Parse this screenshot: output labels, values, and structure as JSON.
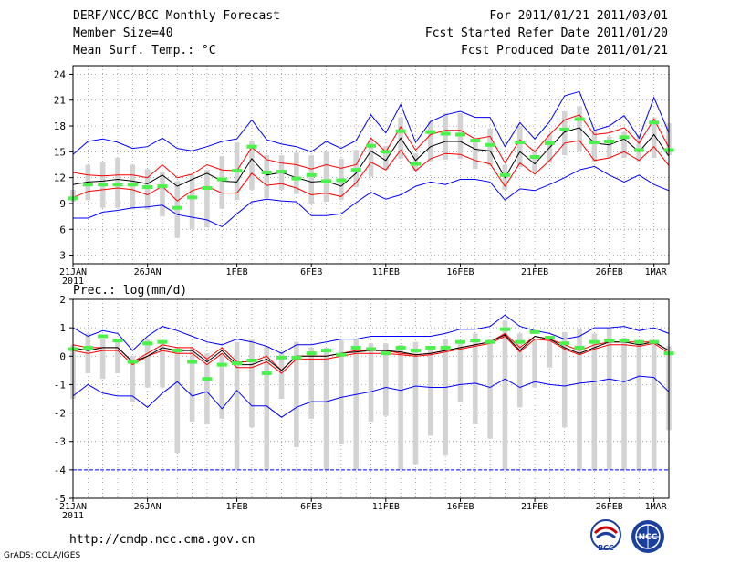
{
  "header": {
    "title": "DERF/NCC/BCC Monthly Forecast",
    "member_size": "Member Size=40",
    "variable": "Mean Surf. Temp.: °C",
    "period": "For 2011/01/21-2011/03/01",
    "refer_date": "Fcst Started Refer Date 2011/01/20",
    "produced_date": "Fcst Produced Date 2011/01/21"
  },
  "footer": {
    "url": "http://cmdp.ncc.cma.gov.cn",
    "credit": "GrADS: COLA/IGES",
    "logo_bcc_text": "BCC",
    "logo_ncc_text": "NCC"
  },
  "colors": {
    "envelope": "#0000ff",
    "spread": "#ff0000",
    "mean": "#000000",
    "median": "#4cf24c",
    "box": "#d3d3d3"
  },
  "chart_data": [
    {
      "type": "box-ensemble",
      "title": "Mean Surf. Temp.: °C",
      "xlabel": "",
      "ylabel": "°C",
      "ylim": [
        2,
        25
      ],
      "yticks": [
        3,
        6,
        9,
        12,
        15,
        18,
        21,
        24
      ],
      "grid": true,
      "x_tick_labels": [
        {
          "day": 0,
          "label": "21JAN"
        },
        {
          "day": 5,
          "label": "26JAN"
        },
        {
          "day": 11,
          "label": "1FEB"
        },
        {
          "day": 16,
          "label": "6FEB"
        },
        {
          "day": 21,
          "label": "11FEB"
        },
        {
          "day": 26,
          "label": "16FEB"
        },
        {
          "day": 31,
          "label": "21FEB"
        },
        {
          "day": 36,
          "label": "26FEB"
        },
        {
          "day": 39,
          "label": "1MAR"
        }
      ],
      "year_label": "2011",
      "series": [
        {
          "name": "max",
          "values": [
            7.3,
            7.3,
            8,
            8.2,
            8.5,
            8.6,
            8.8,
            7.7,
            7.4,
            7.1,
            6.3,
            7.8,
            9.2,
            9.5,
            9.3,
            9.2,
            7.6,
            7.6,
            7.8,
            9.1,
            10.3,
            9.5,
            10,
            11,
            11.5,
            11.2,
            11.8,
            11.8,
            11.5,
            9.4,
            10.7,
            10.5,
            11.2,
            12,
            12.9,
            13.3,
            12.3,
            11.5,
            12.3,
            11.2,
            10.5
          ]
        },
        {
          "name": "min",
          "values": [
            14.7,
            16.2,
            16.5,
            16.1,
            15.4,
            15.6,
            16.6,
            15.4,
            15.1,
            15.6,
            16.2,
            16.5,
            18.7,
            16.4,
            15.9,
            15.6,
            15,
            16.2,
            15.4,
            16.3,
            19.3,
            17.2,
            20.5,
            16.1,
            18.5,
            19.3,
            19.7,
            19,
            19,
            15.6,
            18.4,
            16.5,
            18.5,
            21.5,
            22,
            17.5,
            18,
            19.2,
            16.6,
            21.3,
            17.2
          ]
        },
        {
          "name": "mean",
          "values": [
            11.2,
            11.5,
            11.6,
            11.8,
            11.6,
            11.3,
            12.3,
            11,
            11.8,
            12.5,
            11.6,
            11.5,
            14.2,
            12.3,
            12.6,
            12,
            11.5,
            11.6,
            11,
            12.5,
            15.1,
            14,
            16.6,
            14,
            15.6,
            16.2,
            16.2,
            15.3,
            15.1,
            12,
            15,
            13.6,
            15.5,
            17.3,
            17.8,
            16,
            15.8,
            16.5,
            15,
            17,
            14.5
          ]
        },
        {
          "name": "upper",
          "values": [
            12.6,
            12.3,
            12.2,
            12.3,
            12.3,
            12,
            13.5,
            12,
            12.4,
            13.5,
            12.9,
            12.8,
            15.5,
            14.1,
            13.7,
            13.5,
            13,
            13.5,
            13.1,
            13.5,
            16.6,
            15,
            17.9,
            15.2,
            17,
            17.5,
            17.5,
            16.5,
            16.8,
            13.7,
            16.4,
            15,
            17,
            18.7,
            19.3,
            17,
            17.2,
            17.8,
            16,
            18.8,
            15.5
          ]
        },
        {
          "name": "lower",
          "values": [
            9.7,
            10.4,
            10.6,
            10.8,
            10.6,
            10,
            11,
            9.3,
            10.5,
            11,
            10.2,
            10.2,
            12.5,
            11.1,
            11.3,
            10.8,
            10,
            10.2,
            9.8,
            11.4,
            13.8,
            12.9,
            15.2,
            12.8,
            14.2,
            14.8,
            14.7,
            14,
            13.6,
            11,
            13.7,
            12.4,
            14,
            16,
            16.3,
            14,
            14.3,
            15,
            14,
            15.6,
            13.4
          ]
        },
        {
          "name": "box_low",
          "values": [
            9.2,
            9.4,
            8.5,
            8.5,
            8.3,
            8.3,
            7.5,
            5,
            6,
            6.2,
            8.4,
            9.4,
            10.6,
            9.6,
            10.6,
            10.1,
            9,
            9.2,
            9.4,
            10.9,
            12.1,
            12.9,
            14.2,
            12.8,
            13.9,
            14.1,
            14.2,
            13,
            13.4,
            10.6,
            13.2,
            12.6,
            13.7,
            14.6,
            15,
            13.8,
            14.2,
            14.3,
            13.8,
            14.3,
            14.6
          ]
        },
        {
          "name": "box_high",
          "values": [
            10.6,
            13.5,
            13.8,
            14.3,
            13.5,
            13,
            12.6,
            11.6,
            12.3,
            12.9,
            14.5,
            16.1,
            16.3,
            14.6,
            14.6,
            14.9,
            14.6,
            15,
            14.2,
            15.2,
            16.4,
            15.7,
            19,
            14.8,
            18.5,
            19.5,
            19.5,
            16.6,
            17.7,
            13.5,
            18,
            15.4,
            17,
            19.7,
            20.3,
            17.5,
            16.8,
            17.3,
            17,
            19,
            18.3
          ]
        },
        {
          "name": "median",
          "values": [
            9.6,
            11.2,
            11.2,
            11.2,
            11.2,
            10.9,
            11,
            8.5,
            9.7,
            10.8,
            11.8,
            12.8,
            15.6,
            12.6,
            12.7,
            11.9,
            12.3,
            11.6,
            11.7,
            12.9,
            15.7,
            15,
            17.4,
            13.6,
            17.3,
            17.1,
            17,
            16.3,
            15.8,
            12.3,
            16.1,
            14.4,
            16,
            17.6,
            18.8,
            16.1,
            16.2,
            16.7,
            15.2,
            18.4,
            15.2
          ]
        }
      ]
    },
    {
      "type": "box-ensemble",
      "title": "Prec.: log(mm/d)",
      "xlabel": "",
      "ylabel": "log(mm/d)",
      "ylim": [
        -5,
        2
      ],
      "yticks": [
        -5,
        -4,
        -3,
        -2,
        -1,
        0,
        1,
        2
      ],
      "grid": true,
      "x_tick_labels": [
        {
          "day": 0,
          "label": "21JAN"
        },
        {
          "day": 5,
          "label": "26JAN"
        },
        {
          "day": 11,
          "label": "1FEB"
        },
        {
          "day": 16,
          "label": "6FEB"
        },
        {
          "day": 21,
          "label": "11FEB"
        },
        {
          "day": 26,
          "label": "16FEB"
        },
        {
          "day": 31,
          "label": "21FEB"
        },
        {
          "day": 36,
          "label": "26FEB"
        },
        {
          "day": 39,
          "label": "1MAR"
        }
      ],
      "year_label": "2011",
      "series": [
        {
          "name": "max",
          "values": [
            1,
            0.7,
            0.9,
            0.8,
            0.2,
            0.7,
            1.05,
            0.9,
            0.7,
            0.5,
            0.4,
            0.6,
            0.5,
            0.35,
            0.1,
            0.4,
            0.4,
            0.5,
            0.6,
            0.6,
            0.7,
            0.7,
            0.7,
            0.7,
            0.7,
            0.8,
            0.95,
            0.95,
            1.05,
            1.45,
            1.05,
            0.9,
            0.8,
            0.6,
            0.7,
            1,
            1,
            1.05,
            0.9,
            1,
            0.8
          ]
        },
        {
          "name": "min",
          "values": [
            -1.4,
            -1,
            -1.3,
            -1.4,
            -1.4,
            -1.8,
            -1.3,
            -0.9,
            -1.4,
            -1.25,
            -1.85,
            -1.2,
            -1.75,
            -1.75,
            -2.15,
            -1.8,
            -1.6,
            -1.6,
            -1.45,
            -1.35,
            -1.25,
            -1.1,
            -1.2,
            -1.05,
            -1.1,
            -1.1,
            -1,
            -0.95,
            -1.1,
            -0.8,
            -1.1,
            -0.9,
            -1,
            -1.05,
            -0.95,
            -0.9,
            -0.8,
            -0.9,
            -0.7,
            -0.75,
            -1.25
          ]
        },
        {
          "name": "mean",
          "values": [
            0.3,
            0.2,
            0.3,
            0.3,
            -0.2,
            0,
            0.3,
            0.2,
            0.2,
            -0.2,
            0.2,
            -0.3,
            -0.3,
            -0.1,
            -0.5,
            0,
            0,
            0,
            0.1,
            0.15,
            0.2,
            0.2,
            0.15,
            0.05,
            0.1,
            0.2,
            0.3,
            0.4,
            0.5,
            0.75,
            0.2,
            0.7,
            0.6,
            0.3,
            0.1,
            0.3,
            0.5,
            0.5,
            0.4,
            0.5,
            0.2
          ]
        },
        {
          "name": "upper",
          "values": [
            0.4,
            0.3,
            0.3,
            0.3,
            -0.2,
            0.1,
            0.4,
            0.3,
            0.3,
            -0.1,
            0.3,
            -0.2,
            -0.2,
            0,
            -0.5,
            0,
            0,
            0,
            0.1,
            0.2,
            0.2,
            0.2,
            0.1,
            0.05,
            0.1,
            0.2,
            0.3,
            0.4,
            0.5,
            0.8,
            0.3,
            0.7,
            0.6,
            0.4,
            0.2,
            0.4,
            0.5,
            0.5,
            0.5,
            0.5,
            0.2
          ]
        },
        {
          "name": "lower",
          "values": [
            0.2,
            0.1,
            0.2,
            0.2,
            -0.3,
            0,
            0.2,
            0.1,
            0.1,
            -0.3,
            0.1,
            -0.4,
            -0.4,
            -0.2,
            -0.6,
            -0.1,
            -0.1,
            -0.1,
            0,
            0.1,
            0.1,
            0.1,
            0.05,
            0,
            0.05,
            0.15,
            0.25,
            0.35,
            0.45,
            0.7,
            0.15,
            0.6,
            0.55,
            0.25,
            0.05,
            0.25,
            0.4,
            0.4,
            0.35,
            0.45,
            0.1
          ]
        },
        {
          "name": "box_low",
          "values": [
            -1.5,
            -0.6,
            -0.8,
            -0.6,
            -1.6,
            -1.1,
            -1.1,
            -3.4,
            -2.3,
            -2.4,
            -2.2,
            -4,
            -2.5,
            -4,
            -1.5,
            -3.2,
            -2.2,
            -4,
            -3.1,
            -4,
            -2.3,
            -2.1,
            -4,
            -3.8,
            -2.8,
            -3.5,
            -1.6,
            -2.4,
            -2.9,
            -4,
            -1.8,
            -1.1,
            -0.4,
            -2.5,
            -4,
            -4,
            -4,
            -4,
            -4,
            -4,
            -2.6
          ]
        },
        {
          "name": "box_high",
          "values": [
            0.4,
            0.8,
            0.6,
            0.5,
            0,
            0.6,
            0.5,
            0.3,
            0.3,
            0.1,
            0.1,
            0.5,
            0.6,
            0.35,
            0.15,
            0.5,
            0.3,
            0.3,
            0.55,
            0.6,
            0.45,
            0.45,
            0.4,
            0.5,
            0.35,
            0.6,
            0.55,
            0.8,
            0.6,
            1.25,
            0.8,
            0.6,
            0.7,
            0.85,
            0.95,
            0.8,
            1,
            0.65,
            0.55,
            0.45,
            0.35
          ]
        },
        {
          "name": "median",
          "values": [
            0.25,
            0.3,
            0.7,
            0.55,
            -0.2,
            0.45,
            0.5,
            0.2,
            -0.2,
            -0.8,
            -0.3,
            -0.25,
            -0.15,
            -0.6,
            -0.05,
            -0.05,
            0.1,
            0.2,
            0.05,
            0.3,
            0.25,
            0.1,
            0.3,
            0.2,
            0.3,
            0.3,
            0.5,
            0.55,
            0.5,
            0.95,
            0.5,
            0.85,
            0.65,
            0.45,
            0.3,
            0.5,
            0.55,
            0.55,
            0.5,
            0.5,
            0.1
          ]
        },
        {
          "name": "floor",
          "values": [
            -4,
            -4,
            -4,
            -4,
            -4,
            -4,
            -4,
            -4,
            -4,
            -4,
            -4,
            -4,
            -4,
            -4,
            -4,
            -4,
            -4,
            -4,
            -4,
            -4,
            -4,
            -4,
            -4,
            -4,
            -4,
            -4,
            -4,
            -4,
            -4,
            -4,
            -4,
            -4,
            -4,
            -4,
            -4,
            -4,
            -4,
            -4,
            -4,
            -4,
            -4
          ]
        }
      ]
    }
  ]
}
